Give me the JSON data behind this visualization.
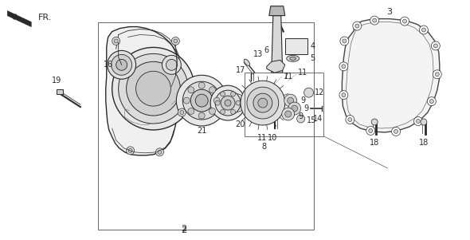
{
  "bg_color": "#ffffff",
  "line_color": "#2a2a2a",
  "gray_light": "#d8d8d8",
  "gray_mid": "#b8b8b8",
  "gray_dark": "#888888",
  "figsize": [
    5.9,
    3.01
  ],
  "dpi": 100
}
